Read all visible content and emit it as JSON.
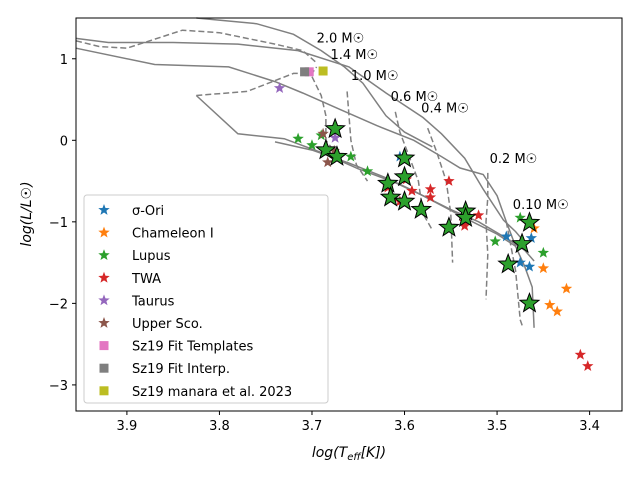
{
  "chart_data": {
    "type": "scatter",
    "xlabel": "log(T_eff[K])",
    "ylabel": "log(L/L_☉)",
    "xlim": [
      3.955,
      3.365
    ],
    "ylim": [
      -3.32,
      1.5
    ],
    "x_inverted": true,
    "xticks": [
      3.9,
      3.8,
      3.7,
      3.6,
      3.5,
      3.4
    ],
    "xtick_labels": [
      "3.9",
      "3.8",
      "3.7",
      "3.6",
      "3.5",
      "3.4"
    ],
    "yticks": [
      1,
      0,
      -1,
      -2,
      -3
    ],
    "ytick_labels": [
      "1",
      "0",
      "−1",
      "−2",
      "−3"
    ],
    "grid": false,
    "legend_position": "lower-left",
    "series": [
      {
        "name": "σ-Ori",
        "marker": "star",
        "color": "#1f77b4",
        "points": [
          [
            3.605,
            -0.2
          ],
          [
            3.49,
            -1.18
          ],
          [
            3.475,
            -1.5
          ],
          [
            3.465,
            -1.55
          ],
          [
            3.463,
            -1.2
          ]
        ]
      },
      {
        "name": "Chameleon I",
        "marker": "star",
        "color": "#ff7f0e",
        "points": [
          [
            3.45,
            -1.57
          ],
          [
            3.443,
            -2.02
          ],
          [
            3.435,
            -2.1
          ],
          [
            3.425,
            -1.82
          ],
          [
            3.46,
            -1.08
          ]
        ]
      },
      {
        "name": "Lupus",
        "marker": "star",
        "color": "#2ca02c",
        "points": [
          [
            3.715,
            0.02
          ],
          [
            3.7,
            -0.06
          ],
          [
            3.658,
            -0.2
          ],
          [
            3.64,
            -0.38
          ],
          [
            3.502,
            -1.24
          ],
          [
            3.475,
            -0.95
          ],
          [
            3.45,
            -1.38
          ],
          [
            3.69,
            0.06
          ]
        ]
      },
      {
        "name": "TWA",
        "marker": "star",
        "color": "#d62728",
        "points": [
          [
            3.618,
            -0.58
          ],
          [
            3.605,
            -0.75
          ],
          [
            3.592,
            -0.62
          ],
          [
            3.572,
            -0.6
          ],
          [
            3.572,
            -0.7
          ],
          [
            3.552,
            -0.5
          ],
          [
            3.535,
            -1.0
          ],
          [
            3.535,
            -1.05
          ],
          [
            3.52,
            -0.92
          ],
          [
            3.41,
            -2.63
          ],
          [
            3.402,
            -2.77
          ],
          [
            3.598,
            -0.48
          ]
        ]
      },
      {
        "name": "Taurus",
        "marker": "star",
        "color": "#9467bd",
        "points": [
          [
            3.735,
            0.64
          ],
          [
            3.675,
            0.03
          ]
        ]
      },
      {
        "name": "Upper Sco.",
        "marker": "star",
        "color": "#8c564b",
        "points": [
          [
            3.688,
            0.08
          ],
          [
            3.683,
            -0.27
          ],
          [
            3.676,
            -0.13
          ]
        ]
      },
      {
        "name": "Sz19 Fit Templates",
        "marker": "square",
        "color": "#e377c2",
        "points": [
          [
            3.703,
            0.84
          ]
        ]
      },
      {
        "name": "Sz19 Fit Interp.",
        "marker": "square",
        "color": "#7f7f7f",
        "points": [
          [
            3.708,
            0.84
          ]
        ]
      },
      {
        "name": "Sz19 manara et al. 2023",
        "marker": "square",
        "color": "#bcbd22",
        "points": [
          [
            3.688,
            0.85
          ]
        ]
      }
    ],
    "highlighted": {
      "marker": "star",
      "color": "#2ca02c",
      "edge": "#000000",
      "points": [
        [
          3.675,
          0.14
        ],
        [
          3.685,
          -0.12
        ],
        [
          3.673,
          -0.2
        ],
        [
          3.6,
          -0.22
        ],
        [
          3.6,
          -0.45
        ],
        [
          3.618,
          -0.53
        ],
        [
          3.615,
          -0.7
        ],
        [
          3.6,
          -0.75
        ],
        [
          3.582,
          -0.85
        ],
        [
          3.552,
          -1.07
        ],
        [
          3.534,
          -0.87
        ],
        [
          3.534,
          -0.95
        ],
        [
          3.473,
          -1.27
        ],
        [
          3.488,
          -1.52
        ],
        [
          3.465,
          -1.01
        ],
        [
          3.465,
          -2.0
        ]
      ]
    },
    "isochrones": [
      [
        [
          3.955,
          1.25
        ],
        [
          3.92,
          1.2
        ],
        [
          3.85,
          1.2
        ],
        [
          3.78,
          1.18
        ],
        [
          3.715,
          1.1
        ],
        [
          3.66,
          0.9
        ],
        [
          3.62,
          0.58
        ],
        [
          3.58,
          0.28
        ],
        [
          3.56,
          0.08
        ],
        [
          3.535,
          -0.22
        ],
        [
          3.515,
          -0.6
        ],
        [
          3.493,
          -0.98
        ],
        [
          3.48,
          -1.12
        ],
        [
          3.468,
          -1.28
        ]
      ],
      [
        [
          3.955,
          1.13
        ],
        [
          3.87,
          0.93
        ],
        [
          3.79,
          0.9
        ],
        [
          3.74,
          0.72
        ],
        [
          3.71,
          0.58
        ],
        [
          3.67,
          0.38
        ],
        [
          3.63,
          0.18
        ],
        [
          3.59,
          0.0
        ],
        [
          3.56,
          -0.2
        ],
        [
          3.54,
          -0.34
        ],
        [
          3.515,
          -0.42
        ],
        [
          3.5,
          -0.68
        ],
        [
          3.49,
          -1.0
        ],
        [
          3.48,
          -1.3
        ],
        [
          3.47,
          -1.55
        ],
        [
          3.462,
          -1.8
        ],
        [
          3.46,
          -2.3
        ]
      ],
      [
        [
          3.825,
          0.55
        ],
        [
          3.78,
          0.08
        ],
        [
          3.73,
          0.02
        ],
        [
          3.69,
          -0.15
        ],
        [
          3.65,
          -0.35
        ],
        [
          3.61,
          -0.52
        ],
        [
          3.58,
          -0.68
        ],
        [
          3.55,
          -0.85
        ],
        [
          3.52,
          -1.0
        ],
        [
          3.49,
          -1.2
        ],
        [
          3.47,
          -1.35
        ],
        [
          3.46,
          -1.48
        ]
      ],
      [
        [
          3.74,
          -0.02
        ],
        [
          3.7,
          -0.12
        ],
        [
          3.66,
          -0.28
        ],
        [
          3.62,
          -0.46
        ],
        [
          3.59,
          -0.62
        ],
        [
          3.56,
          -0.8
        ],
        [
          3.53,
          -0.98
        ],
        [
          3.5,
          -1.15
        ],
        [
          3.48,
          -1.3
        ]
      ],
      [
        [
          3.825,
          1.5
        ],
        [
          3.76,
          1.43
        ],
        [
          3.72,
          1.3
        ],
        [
          3.69,
          1.1
        ],
        [
          3.665,
          0.9
        ],
        [
          3.645,
          0.7
        ],
        [
          3.62,
          0.3
        ],
        [
          3.6,
          0.1
        ],
        [
          3.58,
          -0.02
        ],
        [
          3.57,
          -0.08
        ]
      ]
    ],
    "tracks": [
      {
        "label": "2.0 M_☉",
        "label_at": [
          3.695,
          1.2
        ],
        "points": [
          [
            3.955,
            1.22
          ],
          [
            3.93,
            1.15
          ],
          [
            3.9,
            1.13
          ],
          [
            3.84,
            1.35
          ],
          [
            3.8,
            1.32
          ],
          [
            3.74,
            1.18
          ],
          [
            3.71,
            1.1
          ],
          [
            3.695,
            0.95
          ]
        ]
      },
      {
        "label": "1.4 M_☉",
        "label_at": [
          3.68,
          1.0
        ],
        "points": [
          [
            3.825,
            0.55
          ],
          [
            3.77,
            0.6
          ],
          [
            3.72,
            0.82
          ],
          [
            3.7,
            0.82
          ],
          [
            3.695,
            0.9
          ]
        ]
      },
      {
        "label": "1.0 M_☉",
        "label_at": [
          3.658,
          0.74
        ],
        "points": [
          [
            3.7,
            0.78
          ],
          [
            3.69,
            0.55
          ],
          [
            3.685,
            0.3
          ],
          [
            3.685,
            0.0
          ],
          [
            3.675,
            -0.15
          ]
        ]
      },
      {
        "label": "0.6 M_☉",
        "label_at": [
          3.615,
          0.48
        ],
        "points": [
          [
            3.662,
            0.6
          ],
          [
            3.66,
            0.3
          ],
          [
            3.658,
            0.0
          ],
          [
            3.652,
            -0.3
          ],
          [
            3.64,
            -0.5
          ]
        ]
      },
      {
        "label": "0.4 M_☉",
        "label_at": [
          3.582,
          0.34
        ],
        "points": [
          [
            3.61,
            0.35
          ],
          [
            3.605,
            0.1
          ],
          [
            3.595,
            -0.2
          ],
          [
            3.585,
            -0.5
          ],
          [
            3.58,
            -0.9
          ],
          [
            3.57,
            -1.1
          ]
        ]
      },
      {
        "label": "0.2 M_☉",
        "label_at": [
          3.508,
          -0.28
        ],
        "points": [
          [
            3.575,
            0.15
          ],
          [
            3.565,
            -0.15
          ],
          [
            3.555,
            -0.5
          ],
          [
            3.55,
            -0.9
          ],
          [
            3.548,
            -1.5
          ]
        ]
      },
      {
        "label": "0.10 M_☉",
        "label_at": [
          3.483,
          -0.84
        ],
        "points": [
          [
            3.51,
            -0.4
          ],
          [
            3.51,
            -0.7
          ],
          [
            3.512,
            -1.0
          ],
          [
            3.51,
            -1.4
          ],
          [
            3.512,
            -1.95
          ]
        ]
      },
      {
        "label": "",
        "points": [
          [
            3.49,
            -1.0
          ],
          [
            3.48,
            -1.6
          ],
          [
            3.475,
            -2.2
          ],
          [
            3.472,
            -2.3
          ]
        ]
      }
    ]
  }
}
